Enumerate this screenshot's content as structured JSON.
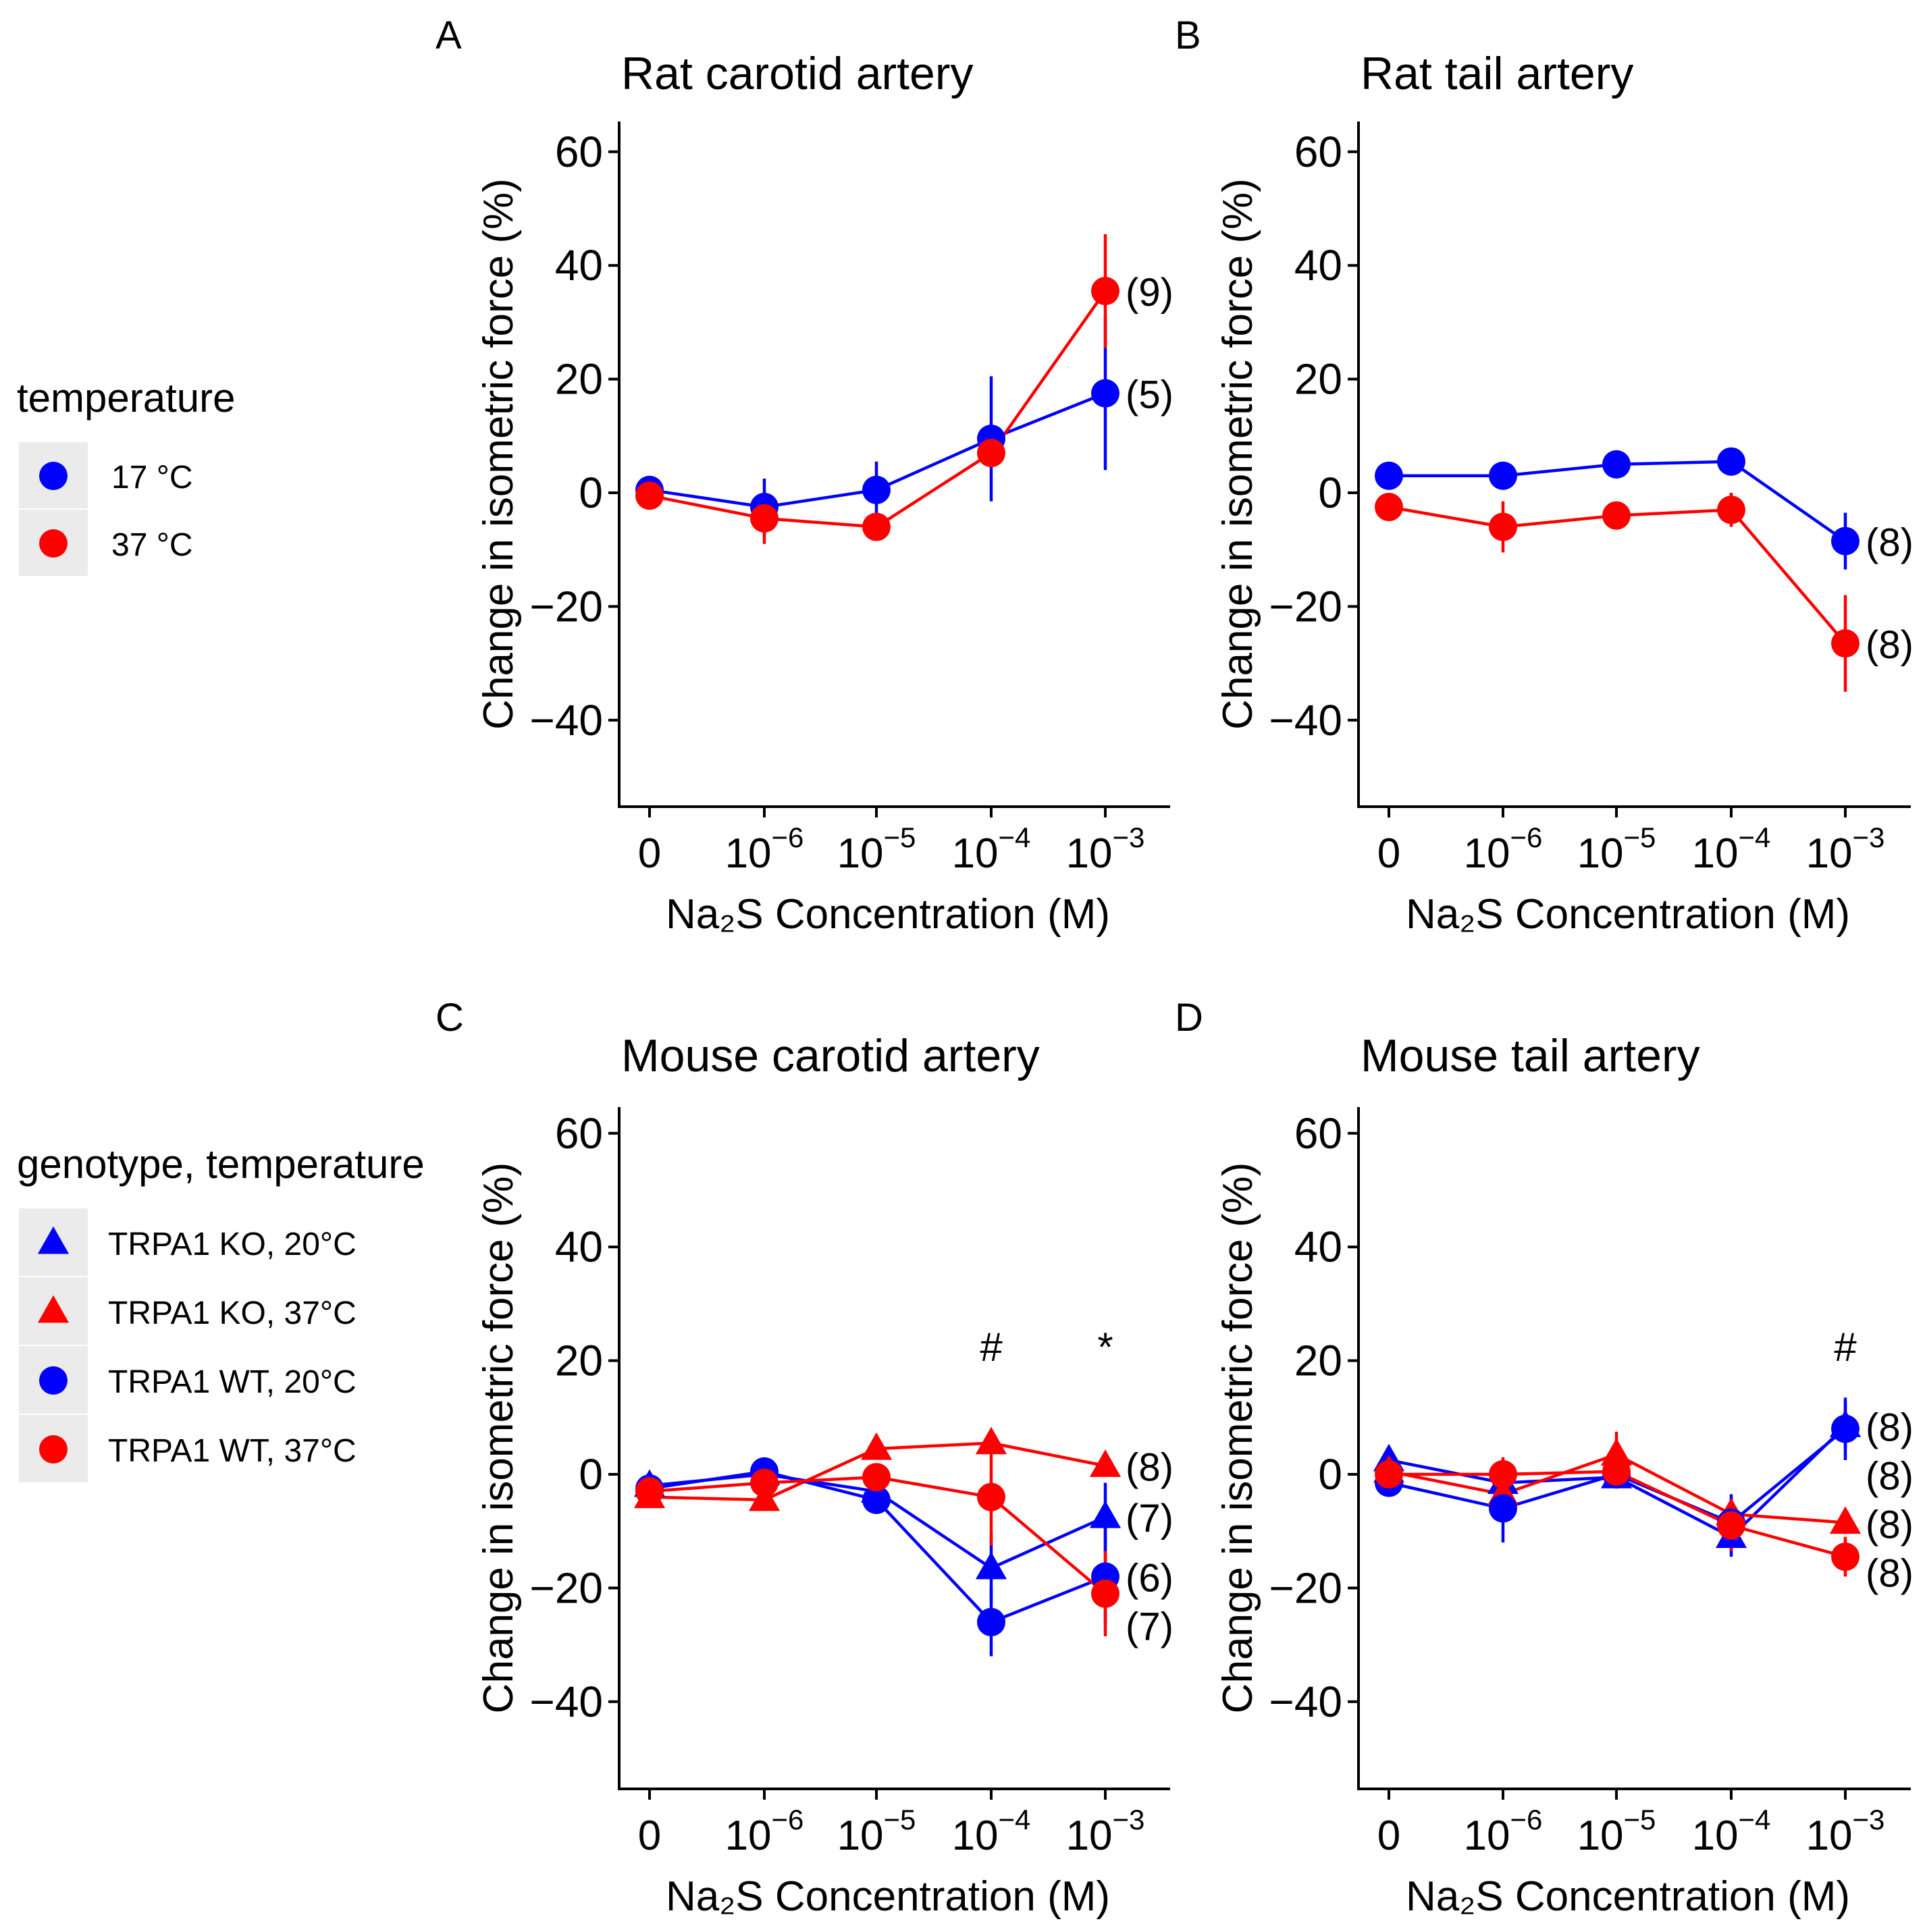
{
  "legends": [
    {
      "title": "temperature",
      "items": [
        {
          "label": "17 °C",
          "color": "#0000ff",
          "shape": "circle"
        },
        {
          "label": "37 °C",
          "color": "#ff0000",
          "shape": "circle"
        }
      ]
    },
    {
      "title": "genotype, temperature",
      "items": [
        {
          "label": "TRPA1 KO, 20°C",
          "color": "#0000ff",
          "shape": "triangle"
        },
        {
          "label": "TRPA1 KO, 37°C",
          "color": "#ff0000",
          "shape": "triangle"
        },
        {
          "label": "TRPA1 WT, 20°C",
          "color": "#0000ff",
          "shape": "circle"
        },
        {
          "label": "TRPA1 WT, 37°C",
          "color": "#ff0000",
          "shape": "circle"
        }
      ]
    }
  ],
  "chart_data": [
    {
      "panel": "A",
      "type": "line",
      "title": "Rat carotid artery",
      "xlabel": "Na₂S Concentration (M)",
      "ylabel": "Change in isometric force (%)",
      "categories": [
        {
          "base": "0",
          "exp": ""
        },
        {
          "base": "10",
          "exp": "−6"
        },
        {
          "base": "10",
          "exp": "−5"
        },
        {
          "base": "10",
          "exp": "−4"
        },
        {
          "base": "10",
          "exp": "−3"
        }
      ],
      "ylim": [
        -55,
        65
      ],
      "yticks": [
        60,
        40,
        20,
        0,
        -20,
        -40
      ],
      "series": [
        {
          "name": "17 °C",
          "color": "#0000ff",
          "shape": "circle",
          "values": [
            0.5,
            -2.5,
            0.5,
            9.5,
            17.5
          ],
          "err": [
            1,
            5,
            5,
            11,
            13.5
          ],
          "n": "(5)"
        },
        {
          "name": "37 °C",
          "color": "#ff0000",
          "shape": "circle",
          "values": [
            -0.5,
            -4.5,
            -6,
            7,
            35.5
          ],
          "err": [
            1,
            4.5,
            2,
            2,
            10
          ],
          "n": "(9)"
        }
      ],
      "annotations": []
    },
    {
      "panel": "B",
      "type": "line",
      "title": "Rat tail artery",
      "xlabel": "Na₂S Concentration (M)",
      "ylabel": "Change in isometric force (%)",
      "categories": [
        {
          "base": "0",
          "exp": ""
        },
        {
          "base": "10",
          "exp": "−6"
        },
        {
          "base": "10",
          "exp": "−5"
        },
        {
          "base": "10",
          "exp": "−4"
        },
        {
          "base": "10",
          "exp": "−3"
        }
      ],
      "ylim": [
        -55,
        65
      ],
      "yticks": [
        60,
        40,
        20,
        0,
        -20,
        -40
      ],
      "series": [
        {
          "name": "17 °C",
          "color": "#0000ff",
          "shape": "circle",
          "values": [
            3,
            3,
            5,
            5.5,
            -8.5
          ],
          "err": [
            1,
            1,
            1,
            1,
            5
          ],
          "n": "(8)"
        },
        {
          "name": "37 °C",
          "color": "#ff0000",
          "shape": "circle",
          "values": [
            -2.5,
            -6,
            -4,
            -3,
            -26.5
          ],
          "err": [
            1,
            4.5,
            1,
            3,
            8.5
          ],
          "n": "(8)"
        }
      ],
      "annotations": []
    },
    {
      "panel": "C",
      "type": "line",
      "title": "Mouse carotid artery",
      "xlabel": "Na₂S Concentration (M)",
      "ylabel": "Change in isometric force (%)",
      "categories": [
        {
          "base": "0",
          "exp": ""
        },
        {
          "base": "10",
          "exp": "−6"
        },
        {
          "base": "10",
          "exp": "−5"
        },
        {
          "base": "10",
          "exp": "−4"
        },
        {
          "base": "10",
          "exp": "−3"
        }
      ],
      "ylim": [
        -55,
        65
      ],
      "yticks": [
        60,
        40,
        20,
        0,
        -20,
        -40
      ],
      "series": [
        {
          "name": "TRPA1 KO, 20°C",
          "color": "#0000ff",
          "shape": "triangle",
          "values": [
            -2,
            0,
            -3,
            -16.5,
            -7.5
          ],
          "err": [
            1,
            1,
            1,
            6,
            6
          ],
          "n": "(7)"
        },
        {
          "name": "TRPA1 KO, 37°C",
          "color": "#ff0000",
          "shape": "triangle",
          "values": [
            -4,
            -4.5,
            4.5,
            5.5,
            1.5
          ],
          "err": [
            1,
            1.5,
            1,
            1,
            1
          ],
          "n": "(8)"
        },
        {
          "name": "TRPA1 WT, 20°C",
          "color": "#0000ff",
          "shape": "circle",
          "values": [
            -2.5,
            0.5,
            -4.5,
            -26,
            -18
          ],
          "err": [
            1,
            1,
            1,
            6,
            8.5
          ],
          "n": "(6)"
        },
        {
          "name": "TRPA1 WT, 37°C",
          "color": "#ff0000",
          "shape": "circle",
          "values": [
            -3,
            -1.5,
            -0.5,
            -4,
            -21
          ],
          "err": [
            1,
            1,
            1,
            8.5,
            7.5
          ],
          "n": "(7)"
        }
      ],
      "annotations": [
        {
          "index": 3,
          "text": "#"
        },
        {
          "index": 4,
          "text": "*"
        }
      ]
    },
    {
      "panel": "D",
      "type": "line",
      "title": "Mouse tail artery",
      "xlabel": "Na₂S Concentration (M)",
      "ylabel": "Change in isometric force (%)",
      "categories": [
        {
          "base": "0",
          "exp": ""
        },
        {
          "base": "10",
          "exp": "−6"
        },
        {
          "base": "10",
          "exp": "−5"
        },
        {
          "base": "10",
          "exp": "−4"
        },
        {
          "base": "10",
          "exp": "−3"
        }
      ],
      "ylim": [
        -55,
        65
      ],
      "yticks": [
        60,
        40,
        20,
        0,
        -20,
        -40
      ],
      "series": [
        {
          "name": "TRPA1 KO, 20°C",
          "color": "#0000ff",
          "shape": "triangle",
          "values": [
            2.5,
            -1.5,
            -0.5,
            -11,
            8.5
          ],
          "err": [
            1.5,
            3,
            2,
            3.5,
            4
          ],
          "n": "(8)"
        },
        {
          "name": "TRPA1 KO, 37°C",
          "color": "#ff0000",
          "shape": "triangle",
          "values": [
            0.5,
            -3.5,
            3.5,
            -7,
            -8.5
          ],
          "err": [
            1,
            3,
            4,
            3,
            2
          ],
          "n": "(8)"
        },
        {
          "name": "TRPA1 WT, 20°C",
          "color": "#0000ff",
          "shape": "circle",
          "values": [
            -1.5,
            -6,
            0,
            -8.5,
            8
          ],
          "err": [
            1,
            6,
            2,
            5,
            5.5
          ],
          "n": "(8)"
        },
        {
          "name": "TRPA1 WT, 37°C",
          "color": "#ff0000",
          "shape": "circle",
          "values": [
            0,
            0,
            0.5,
            -9,
            -14.5
          ],
          "err": [
            1,
            3,
            2,
            4.5,
            3.5
          ],
          "n": "(8)"
        }
      ],
      "annotations": [
        {
          "index": 4,
          "text": "#"
        }
      ]
    }
  ]
}
